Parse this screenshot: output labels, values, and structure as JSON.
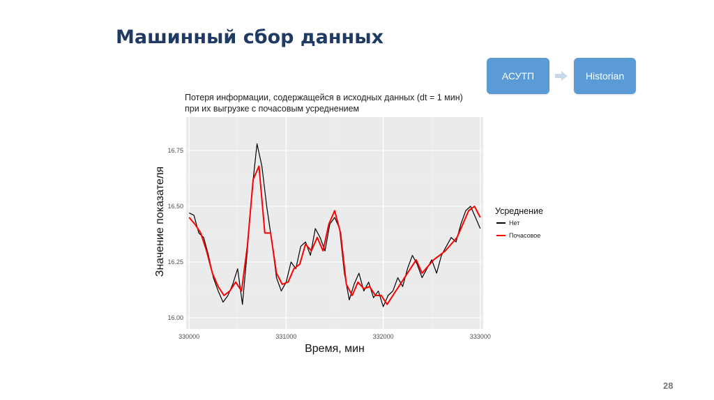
{
  "slide": {
    "title": "Машинный сбор данных",
    "page_number": "28"
  },
  "flow": {
    "source_label": "АСУТП",
    "target_label": "Historian",
    "box_color": "#5b9bd5",
    "arrow_color": "#c9d7ea",
    "arrow_icon": "right-arrow-icon"
  },
  "chart_data": {
    "type": "line",
    "title_lines": [
      "Потеря информации, содержащейся в исходных данных (dt = 1 мин)",
      "при их выгрузке с почасовым усреднением"
    ],
    "xlabel": "Время, мин",
    "ylabel": "Значение показателя",
    "xlim": [
      329970,
      333030
    ],
    "ylim": [
      15.95,
      16.9
    ],
    "x_ticks": [
      330000,
      331000,
      332000,
      333000
    ],
    "x_tick_labels": [
      "330000",
      "331000",
      "332000",
      "333000"
    ],
    "y_ticks": [
      16.0,
      16.25,
      16.5,
      16.75
    ],
    "y_tick_labels": [
      "16.00",
      "16.25",
      "16.50",
      "16.75"
    ],
    "grid": true,
    "panel_background": "#ebebeb",
    "legend": {
      "title": "Усреднение",
      "placement": "right",
      "entries": [
        "Нет",
        "Почасовое"
      ]
    },
    "series": [
      {
        "name": "Нет",
        "color": "#000000",
        "x": [
          330000,
          330050,
          330100,
          330150,
          330200,
          330250,
          330300,
          330350,
          330400,
          330450,
          330500,
          330550,
          330600,
          330650,
          330700,
          330750,
          330800,
          330850,
          330900,
          330950,
          331000,
          331050,
          331100,
          331150,
          331200,
          331250,
          331300,
          331350,
          331400,
          331450,
          331500,
          331550,
          331600,
          331650,
          331700,
          331750,
          331800,
          331850,
          331900,
          331950,
          332000,
          332050,
          332100,
          332150,
          332200,
          332250,
          332300,
          332350,
          332400,
          332450,
          332500,
          332550,
          332600,
          332650,
          332700,
          332750,
          332800,
          332850,
          332900,
          332950,
          333000
        ],
        "y": [
          16.47,
          16.46,
          16.38,
          16.36,
          16.28,
          16.18,
          16.12,
          16.07,
          16.1,
          16.15,
          16.22,
          16.06,
          16.3,
          16.58,
          16.78,
          16.68,
          16.5,
          16.35,
          16.18,
          16.12,
          16.16,
          16.25,
          16.22,
          16.32,
          16.34,
          16.28,
          16.4,
          16.36,
          16.3,
          16.42,
          16.45,
          16.4,
          16.2,
          16.08,
          16.15,
          16.2,
          16.12,
          16.16,
          16.09,
          16.12,
          16.05,
          16.1,
          16.12,
          16.18,
          16.14,
          16.22,
          16.28,
          16.24,
          16.18,
          16.22,
          16.26,
          16.2,
          16.28,
          16.32,
          16.36,
          16.34,
          16.42,
          16.48,
          16.5,
          16.45,
          16.4
        ]
      },
      {
        "name": "Почасовое",
        "color": "#ff0000",
        "x": [
          330000,
          330060,
          330120,
          330180,
          330240,
          330300,
          330360,
          330420,
          330480,
          330540,
          330600,
          330660,
          330720,
          330780,
          330840,
          330900,
          330960,
          331020,
          331080,
          331140,
          331200,
          331260,
          331320,
          331380,
          331440,
          331500,
          331560,
          331620,
          331680,
          331740,
          331800,
          331860,
          331920,
          331980,
          332040,
          332100,
          332160,
          332220,
          332280,
          332340,
          332400,
          332460,
          332520,
          332580,
          332640,
          332700,
          332760,
          332820,
          332880,
          332940,
          333000
        ],
        "y": [
          16.45,
          16.42,
          16.38,
          16.3,
          16.2,
          16.14,
          16.1,
          16.12,
          16.16,
          16.12,
          16.32,
          16.62,
          16.68,
          16.38,
          16.38,
          16.2,
          16.15,
          16.16,
          16.22,
          16.24,
          16.33,
          16.3,
          16.36,
          16.3,
          16.42,
          16.48,
          16.38,
          16.15,
          16.1,
          16.16,
          16.13,
          16.14,
          16.1,
          16.1,
          16.06,
          16.1,
          16.14,
          16.18,
          16.22,
          16.26,
          16.2,
          16.23,
          16.26,
          16.28,
          16.3,
          16.33,
          16.36,
          16.42,
          16.48,
          16.5,
          16.45
        ]
      }
    ]
  }
}
